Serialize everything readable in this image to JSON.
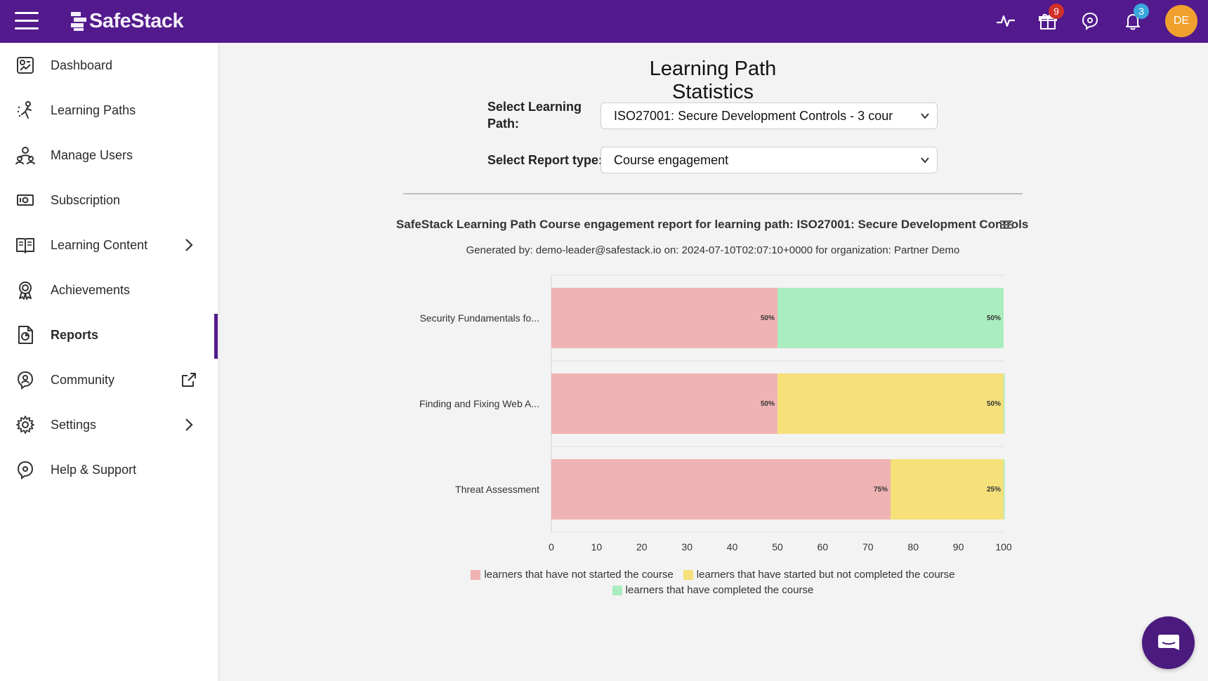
{
  "header": {
    "logo_text": "SafeStack",
    "gift_badge": "9",
    "notifications_badge": "3",
    "avatar_initials": "DE",
    "brand_color": "#521a8c"
  },
  "sidebar": {
    "items": [
      {
        "label": "Dashboard",
        "icon": "dashboard-icon"
      },
      {
        "label": "Learning Paths",
        "icon": "learning-paths-icon"
      },
      {
        "label": "Manage Users",
        "icon": "users-icon"
      },
      {
        "label": "Subscription",
        "icon": "subscription-icon"
      },
      {
        "label": "Learning Content",
        "icon": "book-icon"
      },
      {
        "label": "Achievements",
        "icon": "award-icon"
      },
      {
        "label": "Reports",
        "icon": "report-icon",
        "active": true
      },
      {
        "label": "Community",
        "icon": "community-icon"
      },
      {
        "label": "Settings",
        "icon": "gear-icon"
      },
      {
        "label": "Help & Support",
        "icon": "help-icon"
      }
    ]
  },
  "main": {
    "title": "Learning Path Statistics",
    "learning_path_label": "Select Learning Path:",
    "learning_path_value": "ISO27001: Secure Development Controls - 3 cour",
    "report_type_label": "Select Report type:",
    "report_type_value": "Course engagement",
    "report_title": "SafeStack Learning Path Course engagement report for learning path: ISO27001: Secure Development Controls",
    "report_subtitle": "Generated by: demo-leader@safestack.io on: 2024-07-10T02:07:10+0000 for organization: Partner Demo"
  },
  "chart_data": {
    "type": "bar",
    "orientation": "horizontal",
    "stacked": true,
    "categories": [
      "Security Fundamentals fo...",
      "Finding and Fixing Web A...",
      "Threat Assessment"
    ],
    "series": [
      {
        "name": "learners that have not started the course",
        "color": "#f0b3b3",
        "values": [
          50,
          50,
          75
        ],
        "labels": [
          "50%",
          "50%",
          "75%"
        ]
      },
      {
        "name": "learners that have started but not completed the course",
        "color": "#f5e07a",
        "values": [
          0,
          50,
          25
        ],
        "labels": [
          "",
          "50%",
          "25%"
        ]
      },
      {
        "name": "learners that have completed the course",
        "color": "#aaedbe",
        "values": [
          50,
          0,
          0
        ],
        "labels": [
          "50%",
          "",
          ""
        ]
      }
    ],
    "xlim": [
      0,
      100
    ],
    "xticks": [
      "0",
      "10",
      "20",
      "30",
      "40",
      "50",
      "60",
      "70",
      "80",
      "90",
      "100"
    ],
    "grid": true,
    "legend_position": "bottom"
  }
}
